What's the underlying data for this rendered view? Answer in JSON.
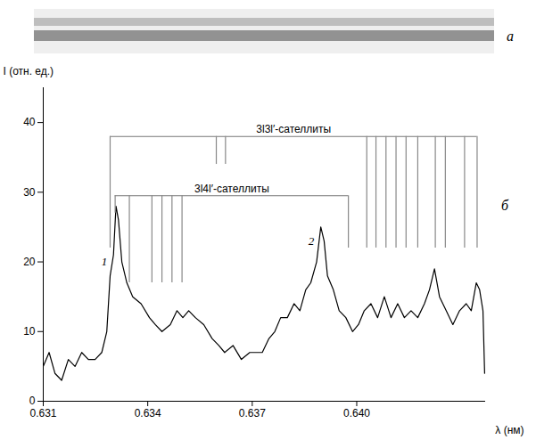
{
  "chart_data": {
    "type": "line",
    "panels": [
      "а",
      "б"
    ],
    "x_label": "λ (нм)",
    "y_label": "I (отн. ед.)",
    "xlim": [
      0.631,
      0.6437
    ],
    "xticks": [
      0.631,
      0.634,
      0.637,
      {
        "value": 0.64,
        "label": "0.640"
      }
    ],
    "ylim": [
      0,
      45
    ],
    "yticks": [
      0,
      10,
      20,
      30,
      40
    ],
    "color": "#000000",
    "x": [
      0.631,
      0.631168,
      0.631336,
      0.631528,
      0.63172,
      0.631912,
      0.632104,
      0.632296,
      0.632488,
      0.63268,
      0.632824,
      0.63292,
      0.633016,
      0.633088,
      0.63316,
      0.633256,
      0.6334,
      0.633568,
      0.633808,
      0.634048,
      0.634216,
      0.634408,
      0.634648,
      0.63484,
      0.635008,
      0.635176,
      0.635368,
      0.635608,
      0.635848,
      0.63604,
      0.636208,
      0.636448,
      0.636688,
      0.636928,
      0.637288,
      0.63748,
      0.637648,
      0.637816,
      0.638008,
      0.6382,
      0.638368,
      0.638536,
      0.63868,
      0.638848,
      0.638968,
      0.639064,
      0.63916,
      0.639328,
      0.639496,
      0.639688,
      0.63988,
      0.64005,
      0.640216,
      0.640408,
      0.6406,
      0.640792,
      0.640984,
      0.641176,
      0.641368,
      0.64156,
      0.641752,
      0.641944,
      0.642088,
      0.642232,
      0.642376,
      0.642568,
      0.64276,
      0.642952,
      0.643144,
      0.643288,
      0.643432,
      0.643528,
      0.643624,
      0.643672
    ],
    "values": [
      5,
      7,
      4,
      3,
      6,
      5,
      7,
      6,
      6,
      7,
      10,
      18,
      21,
      28,
      26,
      20,
      17,
      15,
      14,
      12,
      11,
      10,
      11,
      13,
      12,
      13,
      12,
      11,
      9,
      8,
      7,
      8,
      6,
      7,
      7,
      9,
      10,
      12,
      12,
      14,
      13,
      16,
      17,
      20,
      25,
      23,
      18,
      16,
      13,
      12,
      10,
      11,
      13,
      14,
      12,
      15,
      12,
      14,
      12,
      13,
      12,
      14,
      16,
      19,
      15,
      13,
      11,
      13,
      14,
      13,
      17,
      16,
      13,
      4
    ],
    "peak_labels": [
      {
        "text": "1",
        "x": 0.63284,
        "y": 20
      },
      {
        "text": "2",
        "x": 0.63878,
        "y": 23
      }
    ],
    "brackets": [
      {
        "text": "3l3l′-сателлиты",
        "level": 38,
        "lines": [
          {
            "x": 0.63292,
            "to": 22
          },
          {
            "x": 0.635968,
            "to": 34
          },
          {
            "x": 0.636232,
            "to": 34
          },
          {
            "x": 0.640288,
            "to": 22
          },
          {
            "x": 0.640552,
            "to": 22
          },
          {
            "x": 0.64084,
            "to": 22
          },
          {
            "x": 0.641128,
            "to": 22
          },
          {
            "x": 0.641416,
            "to": 22
          },
          {
            "x": 0.641752,
            "to": 22
          },
          {
            "x": 0.642256,
            "to": 22
          },
          {
            "x": 0.642544,
            "to": 22
          },
          {
            "x": 0.643096,
            "to": 22
          },
          {
            "x": 0.643456,
            "to": 22
          }
        ]
      },
      {
        "text": "3l4l′-сателлиты",
        "level": 29.5,
        "lines": [
          {
            "x": 0.633064,
            "to": 27
          },
          {
            "x": 0.633472,
            "to": 17
          },
          {
            "x": 0.63412,
            "to": 17
          },
          {
            "x": 0.634408,
            "to": 17
          },
          {
            "x": 0.634696,
            "to": 17
          },
          {
            "x": 0.634984,
            "to": 17
          },
          {
            "x": 0.63976,
            "to": 22
          }
        ]
      }
    ]
  }
}
